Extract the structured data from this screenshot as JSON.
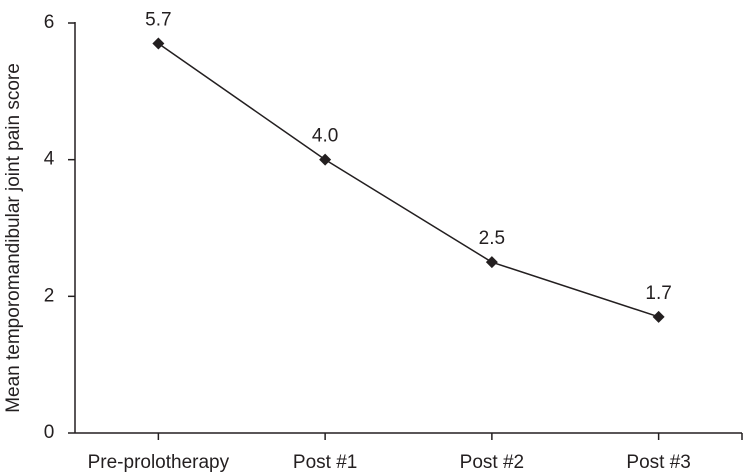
{
  "chart_data": {
    "type": "line",
    "y_label": "Mean temporomandibular joint pain score",
    "categories": [
      "Pre-prolotherapy",
      "Post #1",
      "Post #2",
      "Post #3"
    ],
    "values": [
      5.7,
      4.0,
      2.5,
      1.7
    ],
    "value_labels": [
      "5.7",
      "4.0",
      "2.5",
      "1.7"
    ],
    "color": "#231f20",
    "ylim": [
      0,
      6
    ],
    "yticks": [
      0,
      2,
      4,
      6
    ],
    "grid": false
  }
}
